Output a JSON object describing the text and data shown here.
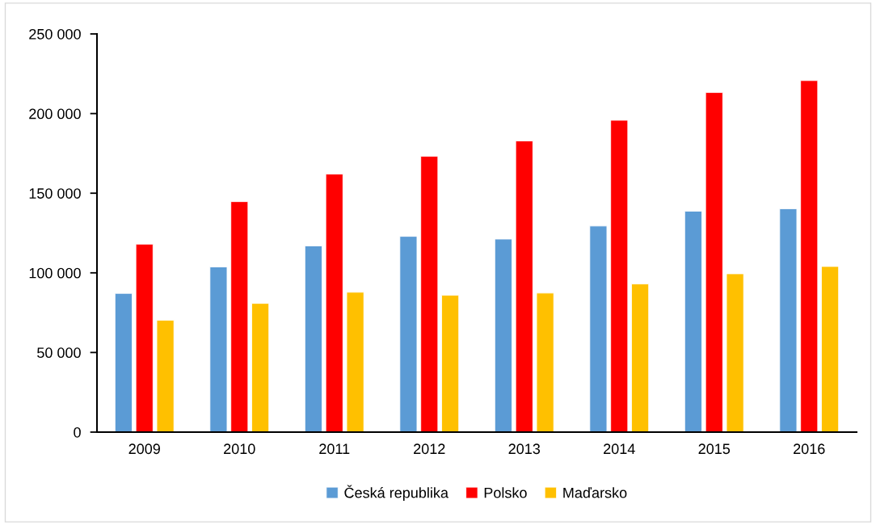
{
  "chart_data": {
    "type": "bar",
    "categories": [
      "2009",
      "2010",
      "2011",
      "2012",
      "2013",
      "2014",
      "2015",
      "2016"
    ],
    "series": [
      {
        "name": "Česká republika",
        "color": "#5b9bd5",
        "values": [
          87100,
          103700,
          116900,
          122900,
          121200,
          129400,
          138700,
          140200
        ]
      },
      {
        "name": "Polsko",
        "color": "#ff0000",
        "values": [
          118000,
          144700,
          162000,
          173200,
          182800,
          195800,
          213200,
          220700
        ]
      },
      {
        "name": "Maďarsko",
        "color": "#ffc000",
        "values": [
          70200,
          80800,
          87800,
          85900,
          87300,
          93000,
          99400,
          104000
        ]
      }
    ],
    "ylim": [
      0,
      250000
    ],
    "yticks": [
      {
        "value": 0,
        "label": "0"
      },
      {
        "value": 50000,
        "label": "50 000"
      },
      {
        "value": 100000,
        "label": "100 000"
      },
      {
        "value": 150000,
        "label": "150 000"
      },
      {
        "value": 200000,
        "label": "200 000"
      },
      {
        "value": 250000,
        "label": "250 000"
      }
    ],
    "grid": false,
    "legend": "bottom"
  }
}
